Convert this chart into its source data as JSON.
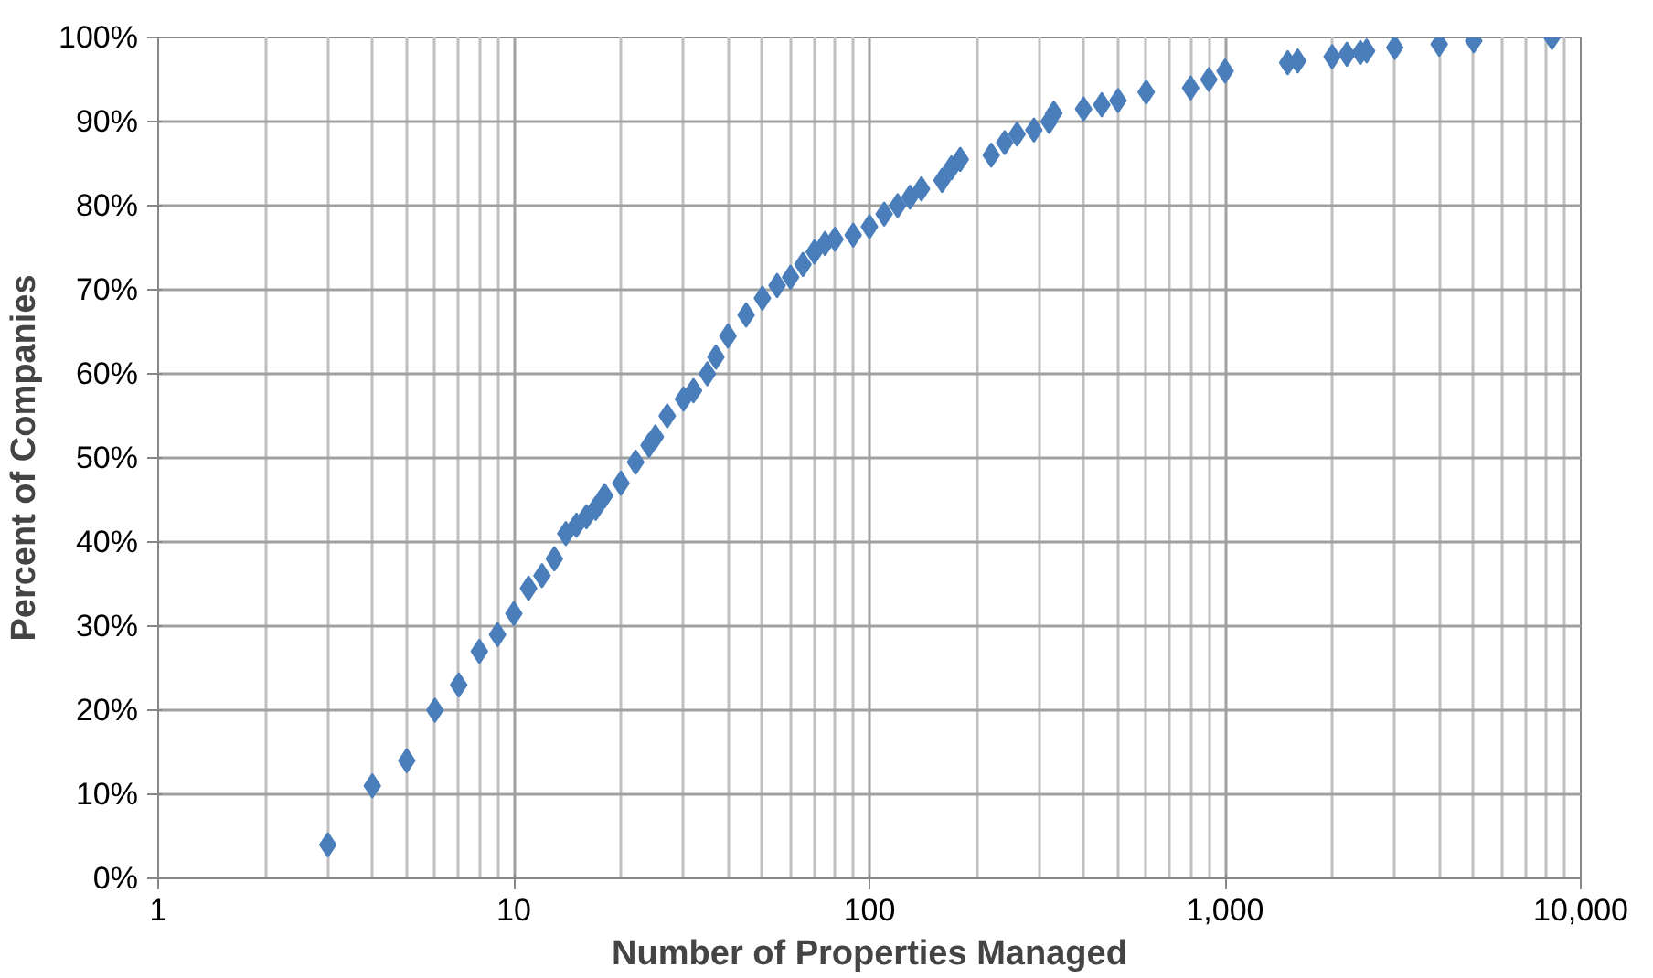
{
  "chart_data": {
    "type": "scatter",
    "xlabel": "Number of Properties Managed",
    "ylabel": "Percent of Companies",
    "log": "x",
    "grid": true,
    "marker": "diamond",
    "xlim": [
      1,
      10000
    ],
    "xticks": [
      1,
      10,
      100,
      {
        "value": 1000,
        "label": "1,000"
      },
      {
        "value": 10000,
        "label": "10,000"
      }
    ],
    "ylim": [
      0,
      100
    ],
    "yticks": [
      {
        "value": 0,
        "label": "0%"
      },
      {
        "value": 10,
        "label": "10%"
      },
      {
        "value": 20,
        "label": "20%"
      },
      {
        "value": 30,
        "label": "30%"
      },
      {
        "value": 40,
        "label": "40%"
      },
      {
        "value": 50,
        "label": "50%"
      },
      {
        "value": 60,
        "label": "60%"
      },
      {
        "value": 70,
        "label": "70%"
      },
      {
        "value": 80,
        "label": "80%"
      },
      {
        "value": 90,
        "label": "90%"
      },
      {
        "value": 100,
        "label": "100%"
      }
    ],
    "series": [
      {
        "color": "#4a7ebb",
        "x": [
          3,
          4,
          5,
          6,
          7,
          8,
          9,
          10,
          11,
          12,
          13,
          14,
          15,
          16,
          17,
          18,
          20,
          22,
          24,
          25,
          27,
          30,
          32,
          35,
          37,
          40,
          45,
          50,
          55,
          60,
          65,
          70,
          75,
          80,
          90,
          100,
          110,
          120,
          130,
          140,
          160,
          170,
          180,
          220,
          240,
          260,
          290,
          320,
          330,
          400,
          450,
          500,
          600,
          800,
          900,
          1000,
          1500,
          1600,
          2000,
          2200,
          2400,
          2500,
          3000,
          4000,
          5000,
          8300
        ],
        "values": [
          4,
          11,
          14,
          20,
          23,
          27,
          29,
          31.5,
          34.5,
          36,
          38,
          41,
          42,
          43,
          44,
          45.5,
          47,
          49.5,
          51.5,
          52.5,
          55,
          57,
          58,
          60,
          62,
          64.5,
          67,
          69,
          70.5,
          71.5,
          73,
          74.5,
          75.5,
          76,
          76.5,
          77.5,
          79,
          80,
          81,
          82,
          83,
          84.5,
          85.5,
          86,
          87.5,
          88.5,
          89,
          90,
          91,
          91.5,
          92,
          92.5,
          93.5,
          94,
          95,
          96,
          97,
          97.2,
          97.7,
          98,
          98.2,
          98.4,
          98.8,
          99.2,
          99.6,
          100
        ]
      }
    ]
  }
}
